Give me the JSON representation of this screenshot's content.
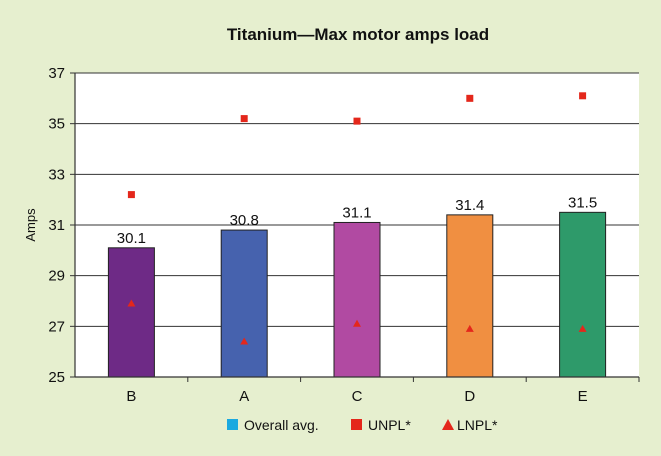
{
  "chart_data": {
    "type": "bar",
    "title": "Titanium—Max motor amps load",
    "ylabel": "Amps",
    "xlabel": "",
    "ylim": [
      25,
      37
    ],
    "yticks": [
      25,
      27,
      29,
      31,
      33,
      35,
      37
    ],
    "grid": true,
    "legend_position": "bottom",
    "categories": [
      "B",
      "A",
      "C",
      "D",
      "E"
    ],
    "bar_colors": [
      "#6e2a86",
      "#4662ae",
      "#b14aa2",
      "#f08f41",
      "#2e9a6a"
    ],
    "series": [
      {
        "name": "Overall avg.",
        "kind": "bar",
        "values": [
          30.1,
          30.8,
          31.1,
          31.4,
          31.5
        ],
        "labels": [
          "30.1",
          "30.8",
          "31.1",
          "31.4",
          "31.5"
        ],
        "legend_color": "#1aa9e0"
      },
      {
        "name": "UNPL*",
        "kind": "square-marker",
        "values": [
          32.2,
          35.2,
          35.1,
          36.0,
          36.1
        ],
        "color": "#e4271b"
      },
      {
        "name": "LNPL*",
        "kind": "triangle-marker",
        "values": [
          27.9,
          26.4,
          27.1,
          26.9,
          26.9
        ],
        "color": "#e4271b"
      }
    ]
  }
}
